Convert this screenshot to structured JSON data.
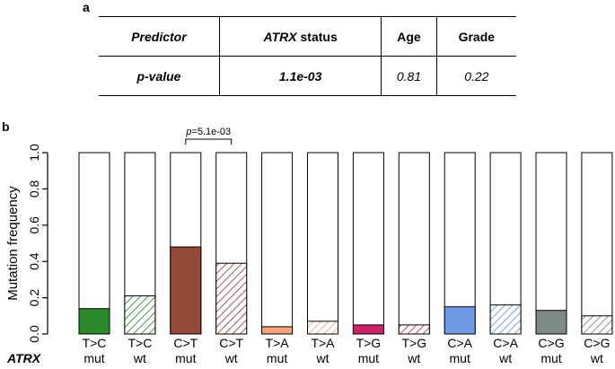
{
  "panel_a": "a",
  "panel_b": "b",
  "table": {
    "h_predictor": "Predictor",
    "h_atrx": "ATRX",
    "h_status": " status",
    "h_age": "Age",
    "h_grade": "Grade",
    "r_label": "p-value",
    "r_atrx": "1.1e-03",
    "r_age": "0.81",
    "r_grade": "0.22"
  },
  "chart_data": {
    "type": "bar",
    "ylabel": "Mutation frequency",
    "ylim": [
      0,
      1
    ],
    "yticks": [
      "0.0",
      "0.2",
      "0.4",
      "0.6",
      "0.8",
      "1.0"
    ],
    "xrow_label": "ATRX",
    "categories": [
      "T>C",
      "T>C",
      "C>T",
      "C>T",
      "T>A",
      "T>A",
      "T>G",
      "T>G",
      "C>A",
      "C>A",
      "C>G",
      "C>G"
    ],
    "status": [
      "mut",
      "wt",
      "mut",
      "wt",
      "mut",
      "wt",
      "mut",
      "wt",
      "mut",
      "wt",
      "mut",
      "wt"
    ],
    "values": [
      0.14,
      0.21,
      0.48,
      0.39,
      0.04,
      0.07,
      0.05,
      0.05,
      0.15,
      0.16,
      0.13,
      0.1
    ],
    "colors": [
      "#2c8a2b",
      "#2c8a2b",
      "#954a38",
      "#954a38",
      "#f5a37a",
      "#f5a37a",
      "#cc2266",
      "#cc2266",
      "#6f9be6",
      "#6f9be6",
      "#7e8a87",
      "#7e8a87"
    ],
    "hatched": [
      false,
      true,
      false,
      true,
      false,
      true,
      false,
      true,
      false,
      true,
      false,
      true
    ],
    "annotation": {
      "prefix": "p",
      "text": "=5.1e-03",
      "from": 2,
      "to": 3
    }
  }
}
